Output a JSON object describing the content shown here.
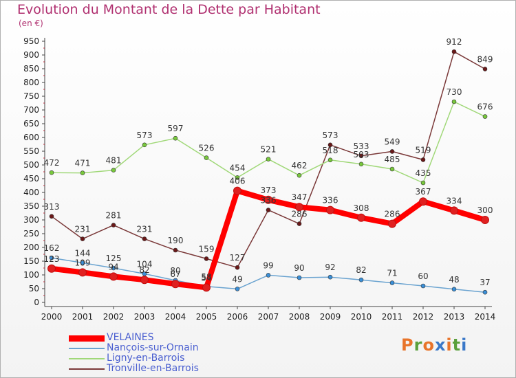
{
  "title": "Evolution du Montant de la Dette par Habitant",
  "unit": "(en €)",
  "logo": {
    "text": "Proxiti",
    "colors": [
      "#e8742a",
      "#5aa03c",
      "#e8742a",
      "#3a78c8",
      "#e8742a",
      "#5aa03c",
      "#3a78c8"
    ]
  },
  "chart_data": {
    "type": "line",
    "x": [
      2000,
      2001,
      2002,
      2003,
      2004,
      2005,
      2006,
      2007,
      2008,
      2009,
      2010,
      2011,
      2012,
      2013,
      2014
    ],
    "ylim": [
      0,
      950
    ],
    "yticks": [
      0,
      50,
      100,
      150,
      200,
      250,
      300,
      350,
      400,
      450,
      500,
      550,
      600,
      650,
      700,
      750,
      800,
      850,
      900,
      950
    ],
    "grid": false,
    "legend_position": "bottom-left",
    "series": [
      {
        "name": "VELAINES",
        "color": "#ff0000",
        "marker": "#e02020",
        "values": [
          123,
          109,
          94,
          82,
          67,
          54,
          406,
          373,
          347,
          336,
          308,
          286,
          367,
          334,
          300
        ],
        "labels": [
          "123",
          "109",
          "94",
          "82",
          "67",
          "54",
          "406",
          "373",
          "347",
          "336",
          "308",
          "286",
          "367",
          "334",
          "300"
        ]
      },
      {
        "name": "Nançois-sur-Ornain",
        "color": "#6aa3d0",
        "marker": "#3a8fd8",
        "values": [
          162,
          144,
          125,
          104,
          80,
          58,
          49,
          99,
          90,
          92,
          82,
          71,
          60,
          48,
          37
        ],
        "labels": [
          "162",
          "144",
          "125",
          "104",
          "80",
          "58",
          "49",
          "99",
          "90",
          "92",
          "82",
          "71",
          "60",
          "48",
          "37"
        ]
      },
      {
        "name": "Ligny-en-Barrois",
        "color": "#a0d878",
        "marker": "#78c83c",
        "values": [
          472,
          471,
          481,
          573,
          597,
          526,
          454,
          521,
          462,
          518,
          503,
          485,
          435,
          730,
          676
        ],
        "labels": [
          "472",
          "471",
          "481",
          "573",
          "597",
          "526",
          "454",
          "521",
          "462",
          "518",
          "503",
          "485",
          "435",
          "730",
          "676"
        ]
      },
      {
        "name": "Tronville-en-Barrois",
        "color": "#7a3838",
        "marker": "#6a1818",
        "values": [
          313,
          231,
          281,
          231,
          190,
          159,
          127,
          336,
          286,
          573,
          533,
          549,
          519,
          912,
          849
        ],
        "labels": [
          "313",
          "231",
          "281",
          "231",
          "190",
          "159",
          "127",
          "336",
          "286",
          "573",
          "533",
          "549",
          "519",
          "912",
          "849"
        ]
      }
    ]
  }
}
